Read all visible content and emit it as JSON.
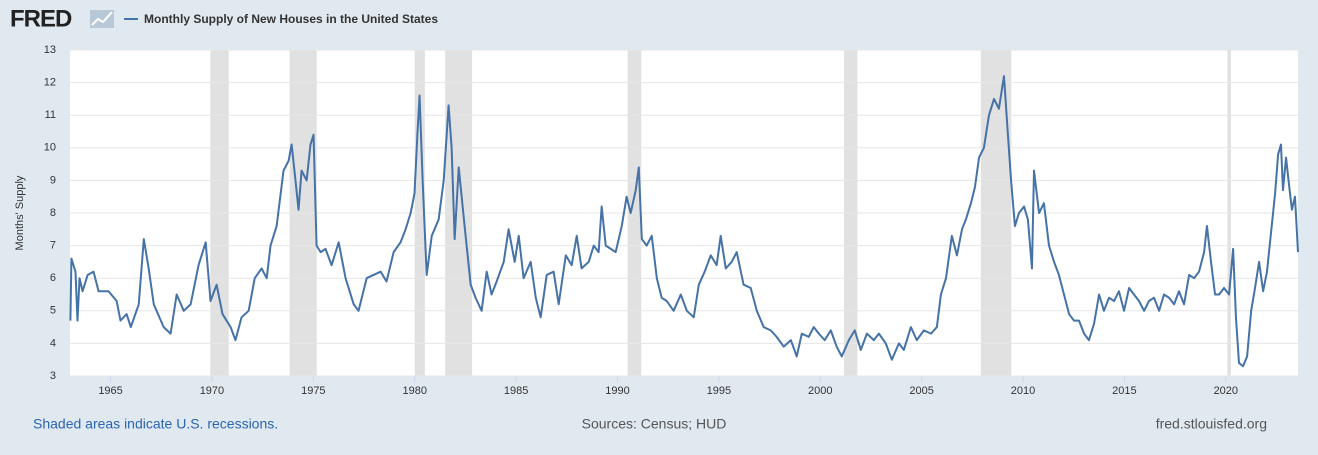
{
  "chart_data": {
    "type": "line",
    "logo": "FRED",
    "y_label": "Months' Supply",
    "note": "Shaded areas indicate U.S. recessions.",
    "source": "Sources: Census; HUD",
    "site": "fred.stlouisfed.org",
    "xlim": [
      1963,
      2023.56
    ],
    "xticks": [
      1965,
      1970,
      1975,
      1980,
      1985,
      1990,
      1995,
      2000,
      2005,
      2010,
      2015,
      2020
    ],
    "ylim": [
      3,
      13
    ],
    "yticks": [
      3,
      4,
      5,
      6,
      7,
      8,
      9,
      10,
      11,
      12,
      13
    ],
    "grid": true,
    "recessions": [
      [
        1969.92,
        1970.83
      ],
      [
        1973.83,
        1975.17
      ],
      [
        1980.0,
        1980.5
      ],
      [
        1981.5,
        1982.83
      ],
      [
        1990.5,
        1991.17
      ],
      [
        2001.17,
        2001.83
      ],
      [
        2007.92,
        2009.42
      ],
      [
        2020.08,
        2020.25
      ]
    ],
    "x": [
      1963.02,
      1963.07,
      1963.27,
      1963.37,
      1963.47,
      1963.62,
      1963.87,
      1964.16,
      1964.41,
      1964.9,
      1965.3,
      1965.49,
      1965.79,
      1966.0,
      1966.39,
      1966.64,
      1966.88,
      1967.13,
      1967.62,
      1967.96,
      1968.26,
      1968.61,
      1968.95,
      1969.34,
      1969.69,
      1969.93,
      1970.23,
      1970.52,
      1970.92,
      1971.16,
      1971.46,
      1971.81,
      1972.11,
      1972.45,
      1972.7,
      1972.89,
      1973.19,
      1973.53,
      1973.78,
      1973.93,
      1974.12,
      1974.27,
      1974.42,
      1974.67,
      1974.86,
      1975.01,
      1975.16,
      1975.36,
      1975.6,
      1975.9,
      1976.25,
      1976.59,
      1976.99,
      1977.23,
      1977.63,
      1977.97,
      1978.32,
      1978.61,
      1978.96,
      1979.3,
      1979.55,
      1979.8,
      1979.99,
      1980.14,
      1980.24,
      1980.39,
      1980.59,
      1980.84,
      1981.18,
      1981.43,
      1981.67,
      1981.82,
      1981.97,
      1982.17,
      1982.46,
      1982.76,
      1983.0,
      1983.3,
      1983.55,
      1983.79,
      1984.04,
      1984.39,
      1984.63,
      1984.93,
      1985.13,
      1985.37,
      1985.72,
      1985.97,
      1986.21,
      1986.51,
      1986.85,
      1987.1,
      1987.45,
      1987.74,
      1987.99,
      1988.23,
      1988.58,
      1988.83,
      1989.07,
      1989.22,
      1989.42,
      1989.67,
      1989.91,
      1990.21,
      1990.45,
      1990.65,
      1990.9,
      1991.05,
      1991.2,
      1991.44,
      1991.69,
      1991.94,
      1992.18,
      1992.43,
      1992.77,
      1993.12,
      1993.42,
      1993.76,
      1994.01,
      1994.3,
      1994.6,
      1994.89,
      1995.09,
      1995.34,
      1995.63,
      1995.88,
      1996.22,
      1996.57,
      1996.87,
      1997.21,
      1997.56,
      1997.85,
      1998.2,
      1998.55,
      1998.84,
      1999.09,
      1999.43,
      1999.68,
      1999.93,
      2000.22,
      2000.52,
      2000.81,
      2001.06,
      2001.41,
      2001.7,
      2002.0,
      2002.3,
      2002.64,
      2002.89,
      2003.23,
      2003.53,
      2003.88,
      2004.12,
      2004.47,
      2004.76,
      2005.11,
      2005.46,
      2005.75,
      2005.95,
      2006.2,
      2006.49,
      2006.74,
      2006.99,
      2007.18,
      2007.43,
      2007.63,
      2007.83,
      2008.07,
      2008.32,
      2008.57,
      2008.81,
      2009.06,
      2009.21,
      2009.41,
      2009.6,
      2009.8,
      2010.05,
      2010.24,
      2010.44,
      2010.54,
      2010.79,
      2011.03,
      2011.28,
      2011.53,
      2011.77,
      2012.02,
      2012.27,
      2012.51,
      2012.76,
      2013.01,
      2013.25,
      2013.5,
      2013.75,
      2013.99,
      2014.24,
      2014.49,
      2014.73,
      2014.98,
      2015.23,
      2015.47,
      2015.72,
      2015.97,
      2016.21,
      2016.46,
      2016.71,
      2016.95,
      2017.2,
      2017.45,
      2017.69,
      2017.94,
      2018.19,
      2018.43,
      2018.68,
      2018.93,
      2019.07,
      2019.27,
      2019.47,
      2019.67,
      2019.91,
      2020.16,
      2020.36,
      2020.5,
      2020.65,
      2020.85,
      2021.05,
      2021.25,
      2021.44,
      2021.64,
      2021.84,
      2022.03,
      2022.23,
      2022.43,
      2022.58,
      2022.72,
      2022.82,
      2022.97,
      2023.11,
      2023.26,
      2023.41,
      2023.56
    ],
    "series": [
      {
        "name": "Monthly Supply of New Houses in the United States",
        "color": "#4572a7",
        "values": [
          4.7,
          6.6,
          6.2,
          4.7,
          6.0,
          5.6,
          6.1,
          6.2,
          5.6,
          5.6,
          5.3,
          4.7,
          4.9,
          4.5,
          5.2,
          7.2,
          6.3,
          5.2,
          4.5,
          4.3,
          5.5,
          5.0,
          5.2,
          6.4,
          7.1,
          5.3,
          5.8,
          4.9,
          4.5,
          4.1,
          4.8,
          5.0,
          6.0,
          6.3,
          6.0,
          7.0,
          7.6,
          9.3,
          9.6,
          10.1,
          9.0,
          8.1,
          9.3,
          9.0,
          10.1,
          10.4,
          7.0,
          6.8,
          6.9,
          6.4,
          7.1,
          6.0,
          5.2,
          5.0,
          6.0,
          6.1,
          6.2,
          5.9,
          6.8,
          7.1,
          7.5,
          8.0,
          8.6,
          10.5,
          11.6,
          9.0,
          6.1,
          7.3,
          7.8,
          9.0,
          11.3,
          10.0,
          7.2,
          9.4,
          7.6,
          5.8,
          5.4,
          5.0,
          6.2,
          5.5,
          5.9,
          6.5,
          7.5,
          6.5,
          7.3,
          6.0,
          6.5,
          5.4,
          4.8,
          6.1,
          6.2,
          5.2,
          6.7,
          6.4,
          7.3,
          6.3,
          6.5,
          7.0,
          6.8,
          8.2,
          7.0,
          6.9,
          6.8,
          7.6,
          8.5,
          8.0,
          8.7,
          9.4,
          7.2,
          7.0,
          7.3,
          6.0,
          5.4,
          5.3,
          5.0,
          5.5,
          5.0,
          4.8,
          5.8,
          6.2,
          6.7,
          6.4,
          7.3,
          6.3,
          6.5,
          6.8,
          5.8,
          5.7,
          5.0,
          4.5,
          4.4,
          4.2,
          3.9,
          4.1,
          3.6,
          4.3,
          4.2,
          4.5,
          4.3,
          4.1,
          4.4,
          3.9,
          3.6,
          4.1,
          4.4,
          3.8,
          4.3,
          4.1,
          4.3,
          4.0,
          3.5,
          4.0,
          3.8,
          4.5,
          4.1,
          4.4,
          4.3,
          4.5,
          5.5,
          6.0,
          7.3,
          6.7,
          7.5,
          7.8,
          8.3,
          8.8,
          9.7,
          10.0,
          11.0,
          11.5,
          11.2,
          12.2,
          10.8,
          9.0,
          7.6,
          8.0,
          8.2,
          7.8,
          6.3,
          9.3,
          8.0,
          8.3,
          7.0,
          6.5,
          6.1,
          5.5,
          4.9,
          4.7,
          4.7,
          4.3,
          4.1,
          4.6,
          5.5,
          5.0,
          5.4,
          5.3,
          5.6,
          5.0,
          5.7,
          5.5,
          5.3,
          5.0,
          5.3,
          5.4,
          5.0,
          5.5,
          5.4,
          5.2,
          5.6,
          5.2,
          6.1,
          6.0,
          6.2,
          6.8,
          7.6,
          6.5,
          5.5,
          5.5,
          5.7,
          5.5,
          6.9,
          4.8,
          3.4,
          3.3,
          3.6,
          5.0,
          5.7,
          6.5,
          5.6,
          6.2,
          7.4,
          8.6,
          9.8,
          10.1,
          8.7,
          9.7,
          8.9,
          8.1,
          8.5,
          6.8
        ]
      }
    ]
  }
}
